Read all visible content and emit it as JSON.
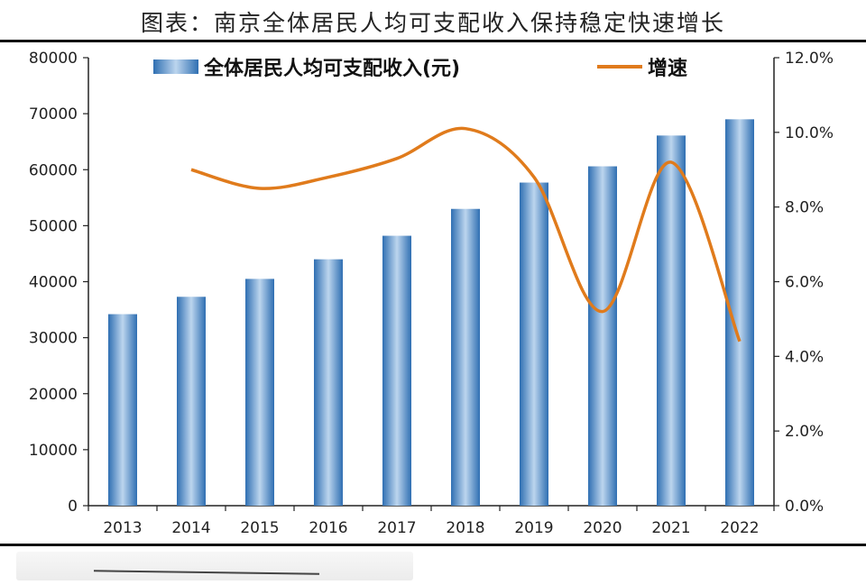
{
  "title": "图表：南京全体居民人均可支配收入保持稳定快速增长",
  "colors": {
    "bar": "#2f6fb2",
    "bar_highlight": "#bcd5ee",
    "line": "#e07b1c",
    "axis": "#222222"
  },
  "chart_data": {
    "type": "bar",
    "categories": [
      "2013",
      "2014",
      "2015",
      "2016",
      "2017",
      "2018",
      "2019",
      "2020",
      "2021",
      "2022"
    ],
    "series": [
      {
        "name": "全体居民人均可支配收入(元)",
        "type": "bar",
        "axis": "left",
        "values": [
          34200,
          37300,
          40500,
          44000,
          48200,
          53000,
          57700,
          60600,
          66100,
          69000
        ]
      },
      {
        "name": "增速",
        "type": "line",
        "axis": "right",
        "values": [
          null,
          9.0,
          8.5,
          8.8,
          9.3,
          10.1,
          8.8,
          5.2,
          9.2,
          4.4
        ]
      }
    ],
    "left_axis": {
      "ylim": [
        0,
        80000
      ],
      "ticks": [
        "0",
        "10000",
        "20000",
        "30000",
        "40000",
        "50000",
        "60000",
        "70000",
        "80000"
      ]
    },
    "right_axis": {
      "ylim": [
        0,
        12
      ],
      "ticks": [
        "0.0%",
        "2.0%",
        "4.0%",
        "6.0%",
        "8.0%",
        "10.0%",
        "12.0%"
      ]
    },
    "legend": {
      "placement": "top-center",
      "entries": [
        "全体居民人均可支配收入(元)",
        "增速"
      ]
    },
    "grid": false
  }
}
